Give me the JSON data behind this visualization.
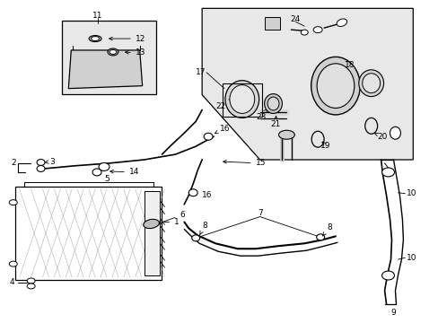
{
  "bg_color": "#ffffff",
  "lc": "#000000",
  "gray_fill": "#e0e0e0",
  "light_gray": "#f0f0f0",
  "inset_fill": "#e8e8e8",
  "box_fill": "#e4e4e4"
}
